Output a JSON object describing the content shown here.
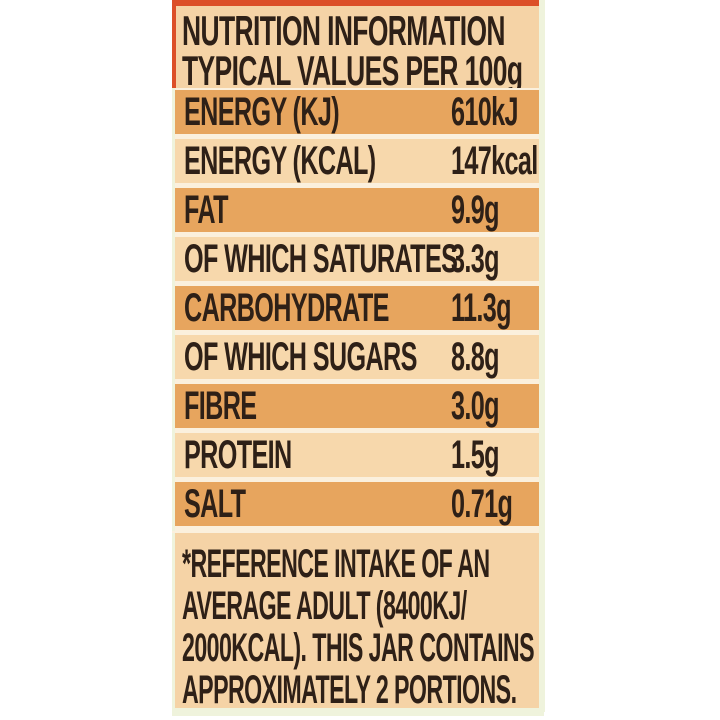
{
  "label": {
    "header": {
      "line1": "NUTRITION INFORMATION",
      "line2": "TYPICAL VALUES PER 100g"
    },
    "rows": [
      {
        "name": "ENERGY (KJ)",
        "value": "610kJ"
      },
      {
        "name": "ENERGY (KCAL)",
        "value": "147kcal"
      },
      {
        "name": "FAT",
        "value": "9.9g"
      },
      {
        "name": "OF WHICH SATURATES",
        "value": "3.3g"
      },
      {
        "name": "CARBOHYDRATE",
        "value": "11.3g"
      },
      {
        "name": "OF WHICH SUGARS",
        "value": "8.8g"
      },
      {
        "name": "FIBRE",
        "value": "3.0g"
      },
      {
        "name": "PROTEIN",
        "value": "1.5g"
      },
      {
        "name": "SALT",
        "value": "0.71g"
      }
    ],
    "footnote_lines": [
      "*REFERENCE INTAKE OF AN",
      "AVERAGE ADULT (8400KJ/",
      "2000KCAL). THIS JAR CONTAINS",
      "APPROXIMATELY 2 PORTIONS."
    ],
    "colors": {
      "accent_red": "#dc4f28",
      "band_dark": "#e7a55e",
      "band_light": "#f7d8ac",
      "panel_bg": "#f5d3a6",
      "gap_bg": "#fbf0dd",
      "text": "#2e2017",
      "edge_strip": "#eff3dc"
    }
  }
}
